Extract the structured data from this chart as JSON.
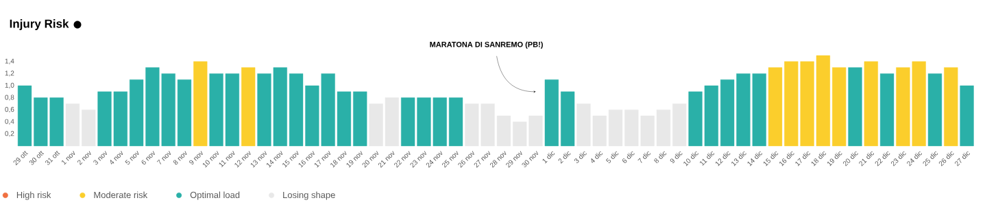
{
  "chart_data": {
    "type": "bar",
    "title": "Injury Risk",
    "categories": [
      "29 ott",
      "30 ott",
      "31 ott",
      "1 nov",
      "2 nov",
      "3 nov",
      "4 nov",
      "5 nov",
      "6 nov",
      "7 nov",
      "8 nov",
      "9 nov",
      "10 nov",
      "11 nov",
      "12 nov",
      "13 nov",
      "14 nov",
      "15 nov",
      "16 nov",
      "17 nov",
      "18 nov",
      "19 nov",
      "20 nov",
      "21 nov",
      "22 nov",
      "23 nov",
      "24 nov",
      "25 nov",
      "26 nov",
      "27 nov",
      "28 nov",
      "29 nov",
      "30 nov",
      "1 dic",
      "2 dic",
      "3 dic",
      "4 dic",
      "5 dic",
      "6 dic",
      "7 dic",
      "8 dic",
      "9 dic",
      "10 dic",
      "11 dic",
      "12 dic",
      "13 dic",
      "14 dic",
      "15 dic",
      "16 dic",
      "17 dic",
      "18 dic",
      "19 dic",
      "20 dic",
      "21 dic",
      "22 dic",
      "23 dic",
      "24 dic",
      "25 dic",
      "26 dic",
      "27 dic"
    ],
    "series": [
      {
        "name": "High risk",
        "color": "#f07040",
        "values": [
          null,
          null,
          null,
          null,
          null,
          null,
          null,
          null,
          null,
          null,
          null,
          null,
          null,
          null,
          null,
          null,
          null,
          null,
          null,
          null,
          null,
          null,
          null,
          null,
          null,
          null,
          null,
          null,
          null,
          null,
          null,
          null,
          null,
          null,
          null,
          null,
          null,
          null,
          null,
          null,
          null,
          null,
          null,
          null,
          null,
          null,
          null,
          null,
          null,
          null,
          null,
          null,
          null,
          null,
          null,
          null,
          null,
          null,
          null,
          null
        ]
      },
      {
        "name": "Moderate risk",
        "color": "#fbce2c",
        "values": [
          null,
          null,
          null,
          null,
          null,
          null,
          null,
          null,
          null,
          null,
          null,
          1.4,
          null,
          null,
          1.3,
          null,
          null,
          null,
          null,
          null,
          null,
          null,
          null,
          null,
          null,
          null,
          null,
          null,
          null,
          null,
          null,
          null,
          null,
          null,
          null,
          null,
          null,
          null,
          null,
          null,
          null,
          null,
          null,
          null,
          null,
          null,
          null,
          1.3,
          1.4,
          1.4,
          1.5,
          1.3,
          null,
          1.4,
          null,
          1.3,
          1.4,
          null,
          1.3,
          null
        ]
      },
      {
        "name": "Optimal load",
        "color": "#2ab0a8",
        "values": [
          1.0,
          0.8,
          0.8,
          null,
          null,
          0.9,
          0.9,
          1.1,
          1.3,
          1.2,
          1.1,
          null,
          1.2,
          1.2,
          null,
          1.2,
          1.3,
          1.2,
          1.0,
          1.2,
          0.9,
          0.9,
          null,
          null,
          0.8,
          0.8,
          0.8,
          0.8,
          null,
          null,
          null,
          null,
          null,
          1.1,
          0.9,
          null,
          null,
          null,
          null,
          null,
          null,
          null,
          0.9,
          1.0,
          1.1,
          1.2,
          1.2,
          null,
          null,
          null,
          null,
          null,
          1.3,
          null,
          1.2,
          null,
          null,
          1.2,
          null,
          1.0
        ]
      },
      {
        "name": "Losing shape",
        "color": "#e8e8e8",
        "values": [
          null,
          null,
          null,
          0.7,
          0.6,
          null,
          null,
          null,
          null,
          null,
          null,
          null,
          null,
          null,
          null,
          null,
          null,
          null,
          null,
          null,
          null,
          null,
          0.7,
          0.8,
          null,
          null,
          null,
          null,
          0.7,
          0.7,
          0.5,
          0.4,
          0.5,
          null,
          null,
          0.7,
          0.5,
          0.6,
          0.6,
          0.5,
          0.6,
          0.7,
          null,
          null,
          null,
          null,
          null,
          null,
          null,
          null,
          null,
          null,
          null,
          null,
          null,
          null,
          null,
          null,
          null,
          null
        ]
      }
    ],
    "ylim": [
      0,
      1.5
    ],
    "yticks": [
      {
        "value": 0.2,
        "label": "0,2"
      },
      {
        "value": 0.4,
        "label": "0,4"
      },
      {
        "value": 0.6,
        "label": "0,6"
      },
      {
        "value": 0.8,
        "label": "0,8"
      },
      {
        "value": 1.0,
        "label": "1,0"
      },
      {
        "value": 1.2,
        "label": "1,2"
      },
      {
        "value": 1.4,
        "label": "1,4"
      }
    ],
    "grid": false,
    "legend": "bottom left",
    "annotations": [
      {
        "text": "MARATONA DI SANREMO (PB!)",
        "x": "30 nov",
        "y": 0.9
      }
    ]
  }
}
